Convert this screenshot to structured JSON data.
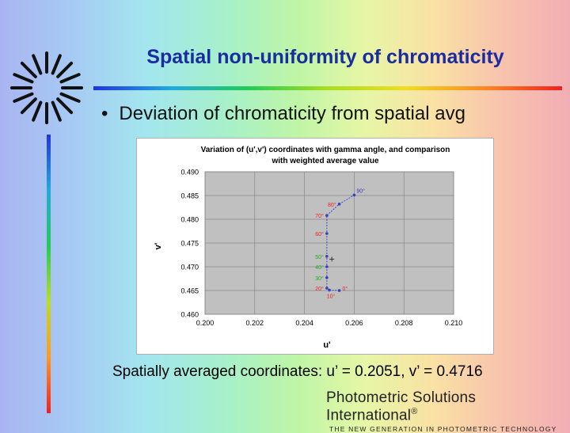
{
  "slide": {
    "title": "Spatial non-uniformity of chromaticity",
    "bullet": "Deviation of chromaticity from spatial avg",
    "caption": "Spatially averaged coordinates: u’ = 0.2051, v’ = 0.4716",
    "logo_name": "Photometric Solutions International",
    "logo_mark": "®",
    "logo_tagline": "The new generation in photometric technology",
    "bullet_glyph": "•"
  },
  "colors": {
    "title": "#1a2d9e",
    "plot_bg": "#c0c0c0",
    "series_line": "#3340c0",
    "label_red": "#ee2222",
    "label_green": "#22aa22"
  },
  "chart_data": {
    "type": "scatter",
    "title": "Variation of (u',v') coordinates with gamma angle, and comparison with weighted average value",
    "xlabel": "u'",
    "ylabel": "v'",
    "xlim": [
      0.2,
      0.21
    ],
    "ylim": [
      0.46,
      0.49
    ],
    "xticks": [
      "0.200",
      "0.202",
      "0.204",
      "0.206",
      "0.208",
      "0.210"
    ],
    "yticks": [
      "0.460",
      "0.465",
      "0.470",
      "0.475",
      "0.480",
      "0.485",
      "0.490"
    ],
    "grid": true,
    "legend": "none",
    "average_point": {
      "x": 0.2051,
      "y": 0.4716
    },
    "series": [
      {
        "points": [
          {
            "x": 0.2054,
            "y": 0.465,
            "label": "0°",
            "label_color": "red"
          },
          {
            "x": 0.205,
            "y": 0.4651,
            "label": "10°",
            "label_color": "red"
          },
          {
            "x": 0.2049,
            "y": 0.4655,
            "label": "20°",
            "label_color": "red"
          },
          {
            "x": 0.2049,
            "y": 0.4677,
            "label": "30°",
            "label_color": "green"
          },
          {
            "x": 0.2049,
            "y": 0.47,
            "label": "40°",
            "label_color": "green"
          },
          {
            "x": 0.2049,
            "y": 0.4722,
            "label": "50°",
            "label_color": "green"
          },
          {
            "x": 0.2049,
            "y": 0.477,
            "label": "60°",
            "label_color": "red"
          },
          {
            "x": 0.2049,
            "y": 0.4808,
            "label": "70°",
            "label_color": "red"
          },
          {
            "x": 0.2054,
            "y": 0.4832,
            "label": "80°",
            "label_color": "red"
          },
          {
            "x": 0.206,
            "y": 0.4851,
            "label": "90°",
            "label_color": "blue"
          }
        ]
      }
    ]
  }
}
